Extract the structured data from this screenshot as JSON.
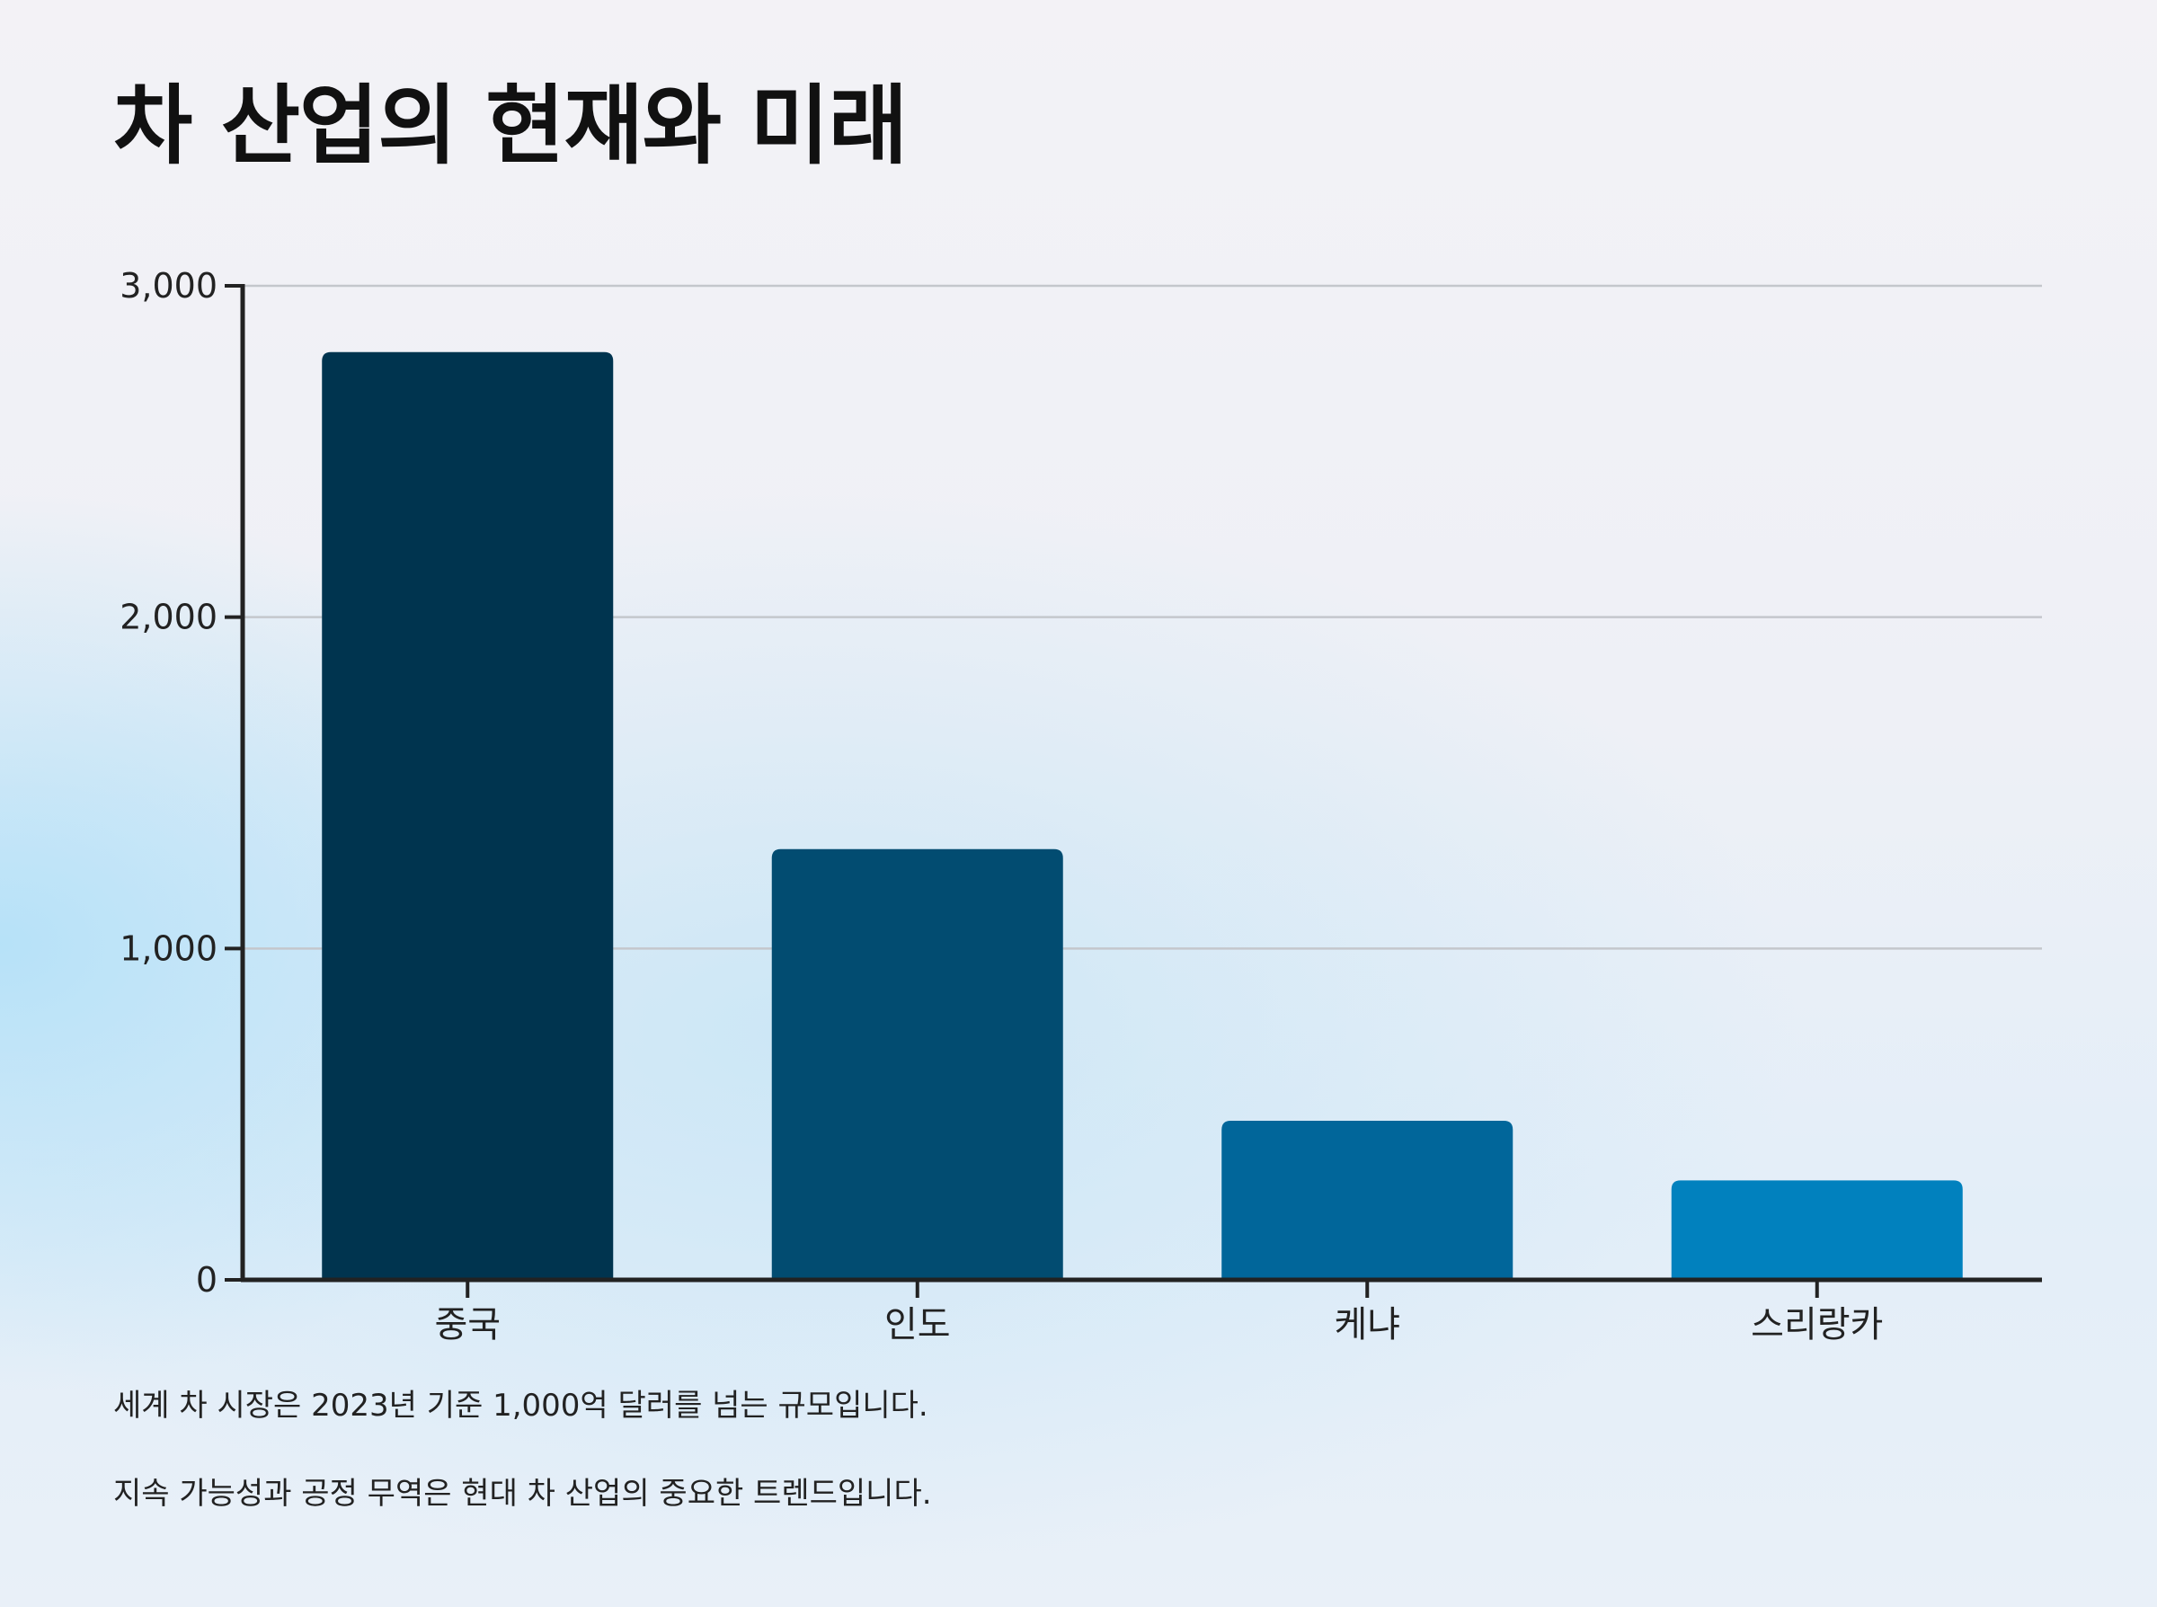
{
  "title": "차 산업의 현재와 미래",
  "footnotes": [
    "세계 차 시장은 2023년 기준 1,000억 달러를 넘는 규모입니다.",
    "지속 가능성과 공정 무역은 현대 차 산업의 중요한 트렌드입니다."
  ],
  "chart_data": {
    "type": "bar",
    "title": "",
    "xlabel": "",
    "ylabel": "",
    "categories": [
      "중국",
      "인도",
      "케냐",
      "스리랑카"
    ],
    "values": [
      2800,
      1300,
      480,
      300
    ],
    "ylim": [
      0,
      3000
    ],
    "yticks": [
      0,
      1000,
      2000,
      3000
    ],
    "ytick_labels": [
      "0",
      "1,000",
      "2,000",
      "3,000"
    ],
    "grid": true,
    "legend": "none",
    "colors": [
      "#00344f",
      "#024c71",
      "#01669a",
      "#0181be"
    ],
    "axis_color": "#222222",
    "grid_color": "#c4c7cc"
  }
}
